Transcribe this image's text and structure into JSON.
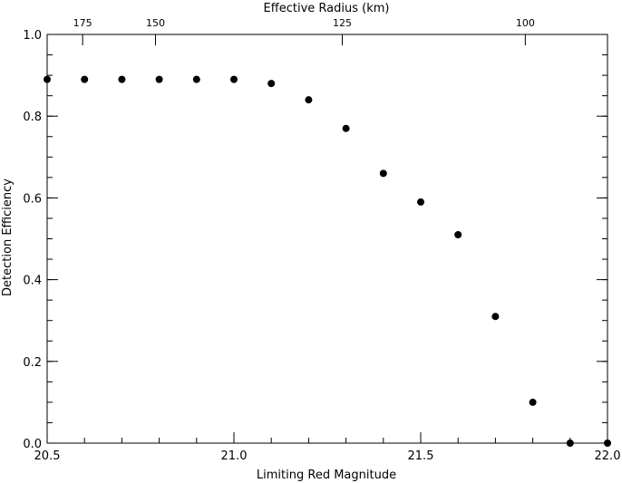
{
  "chart_data": {
    "type": "scatter",
    "xlabel": "Limiting Red Magnitude",
    "ylabel": "Detection Efficiency",
    "top_xlabel": "Effective Radius (km)",
    "xlim": [
      20.5,
      22.0
    ],
    "ylim": [
      0.0,
      1.0
    ],
    "x_ticks": [
      20.5,
      21.0,
      21.5,
      22.0
    ],
    "x_tick_labels": [
      "20.5",
      "21.0",
      "21.5",
      "22.0"
    ],
    "x_minor_step": 0.1,
    "y_ticks": [
      0.0,
      0.2,
      0.4,
      0.6,
      0.8,
      1.0
    ],
    "y_tick_labels": [
      "0.0",
      "0.2",
      "0.4",
      "0.6",
      "0.8",
      "1.0"
    ],
    "y_minor_step": 0.05,
    "top_ticks": [
      {
        "at_mag": 20.595,
        "label": "175"
      },
      {
        "at_mag": 20.79,
        "label": "150"
      },
      {
        "at_mag": 21.29,
        "label": "125"
      },
      {
        "at_mag": 21.78,
        "label": "100"
      }
    ],
    "grid": false,
    "series": [
      {
        "marker": "filled-circle",
        "color": "#000000",
        "x": [
          20.5,
          20.6,
          20.7,
          20.8,
          20.9,
          21.0,
          21.1,
          21.2,
          21.3,
          21.4,
          21.5,
          21.6,
          21.7,
          21.8,
          21.9,
          22.0
        ],
        "y": [
          0.89,
          0.89,
          0.89,
          0.89,
          0.89,
          0.89,
          0.88,
          0.84,
          0.77,
          0.66,
          0.59,
          0.51,
          0.31,
          0.1,
          0.0,
          0.0
        ]
      }
    ]
  }
}
